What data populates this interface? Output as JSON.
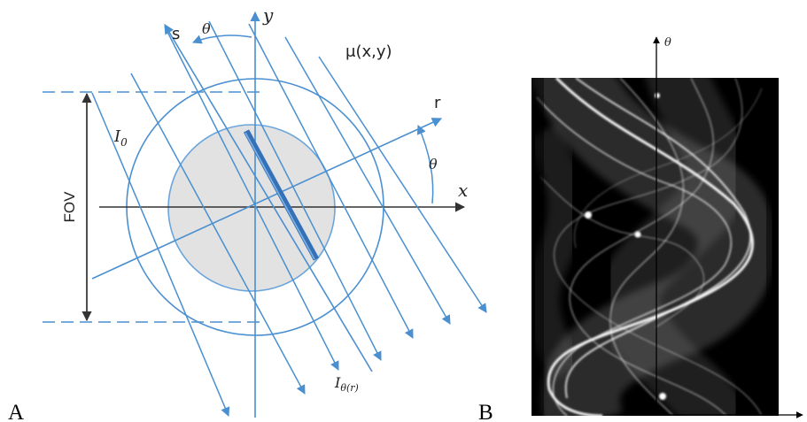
{
  "panels": {
    "a": {
      "label": "A",
      "labels": {
        "y_axis": "y",
        "x_axis": "x",
        "s_axis": "s",
        "r_axis": "r",
        "theta_top": "θ",
        "theta_right": "θ",
        "attenuation": "μ(x,y)",
        "fov": "FOV",
        "i0": "I",
        "i0_sub": "0",
        "itheta": "I",
        "itheta_sub": "θ(r)"
      },
      "colors": {
        "beam": "#4a8fd0",
        "object_fill": "#e2e2e2",
        "object_stroke": "#6aa5dc",
        "projection_line": "#2f70b8",
        "axis": "#333333"
      }
    },
    "b": {
      "label": "B",
      "labels": {
        "theta_axis": "θ"
      },
      "colors": {
        "background": "#000000",
        "trace": "#ffffff"
      }
    }
  }
}
